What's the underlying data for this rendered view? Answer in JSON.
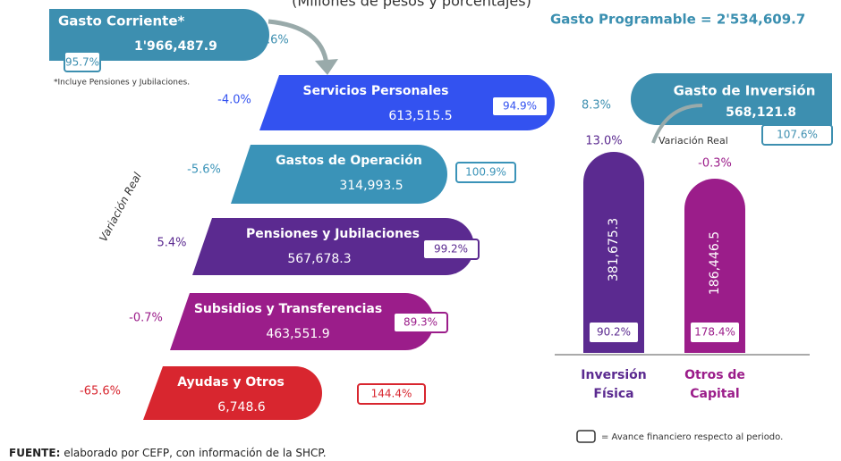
{
  "header": {
    "subtitle": "(Millones de pesos y porcentajes)",
    "total": "Gasto Programable = 2'534,609.7"
  },
  "gasto_corriente": {
    "title": "Gasto Corriente*",
    "value": "1'966,487.9",
    "variation": "-1.6%",
    "avance": "95.7%",
    "note": "*Incluye Pensiones y Jubilaciones."
  },
  "axis_label": "Variación Real",
  "items": [
    {
      "name": "Servicios Personales",
      "value": "613,515.5",
      "variation": "-4.0%",
      "avance": "94.9%"
    },
    {
      "name": "Gastos de Operación",
      "value": "314,993.5",
      "variation": "-5.6%",
      "avance": "100.9%"
    },
    {
      "name": "Pensiones y Jubilaciones",
      "value": "567,678.3",
      "variation": "5.4%",
      "avance": "99.2%"
    },
    {
      "name": "Subsidios y Transferencias",
      "value": "463,551.9",
      "variation": "-0.7%",
      "avance": "89.3%"
    },
    {
      "name": "Ayudas y Otros",
      "value": "6,748.6",
      "variation": "-65.6%",
      "avance": "144.4%"
    }
  ],
  "inversion": {
    "title": "Gasto de Inversión",
    "value": "568,121.8",
    "variation": "8.3%",
    "avance": "107.6%",
    "variation_label": "Variación Real",
    "bars": [
      {
        "name_line1": "Inversión",
        "name_line2": "Física",
        "value": "381,675.3",
        "variation": "13.0%",
        "avance": "90.2%"
      },
      {
        "name_line1": "Otros de",
        "name_line2": "Capital",
        "value": "186,446.5",
        "variation": "-0.3%",
        "avance": "178.4%"
      }
    ]
  },
  "legend": "= Avance financiero respecto al periodo.",
  "footer": {
    "label": "FUENTE:",
    "text": " elaborado por CEFP, con información de la SHCP."
  }
}
